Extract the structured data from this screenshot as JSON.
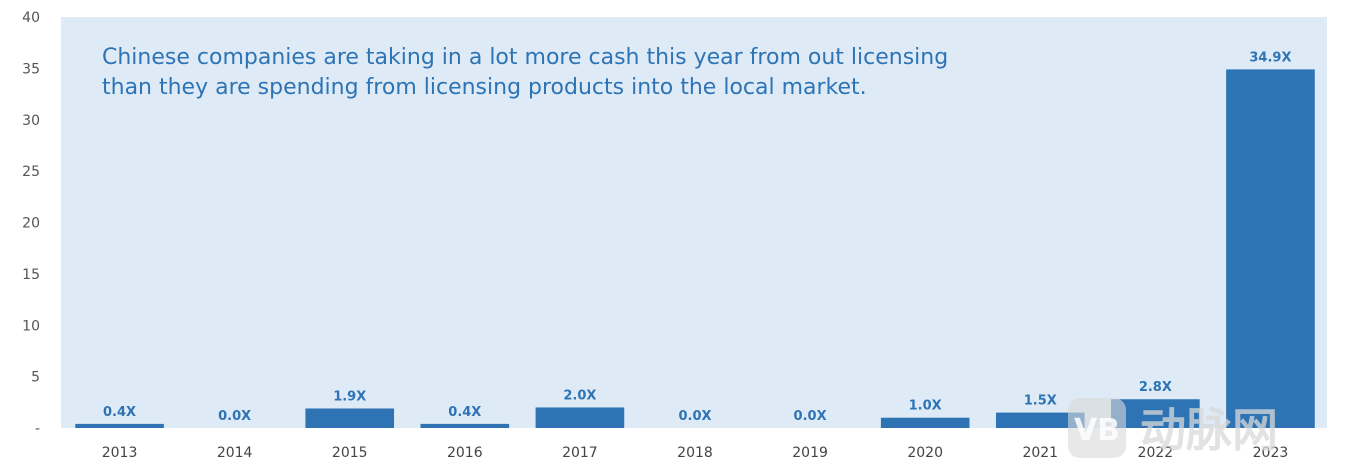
{
  "chart_data": {
    "type": "bar",
    "categories": [
      "2013",
      "2014",
      "2015",
      "2016",
      "2017",
      "2018",
      "2019",
      "2020",
      "2021",
      "2022",
      "2023"
    ],
    "values": [
      0.4,
      0.0,
      1.9,
      0.4,
      2.0,
      0.0,
      0.0,
      1.0,
      1.5,
      2.8,
      34.9
    ],
    "data_labels": [
      "0.4X",
      "0.0X",
      "1.9X",
      "0.4X",
      "2.0X",
      "0.0X",
      "0.0X",
      "1.0X",
      "1.5X",
      "2.8X",
      "34.9X"
    ],
    "yticks": [
      "-",
      "5",
      "10",
      "15",
      "20",
      "25",
      "30",
      "35",
      "40"
    ],
    "ylim": [
      0,
      40
    ],
    "annotation": [
      "Chinese companies are taking in a lot more cash this year from out licensing",
      "than they are spending from licensing products into the local market."
    ],
    "title": "",
    "xlabel": "",
    "ylabel": "",
    "colors": {
      "bar": "#2e74b5",
      "plot_bg": "#deebf7",
      "label": "#2e74b5"
    }
  },
  "watermark": {
    "text": "动脉网"
  }
}
